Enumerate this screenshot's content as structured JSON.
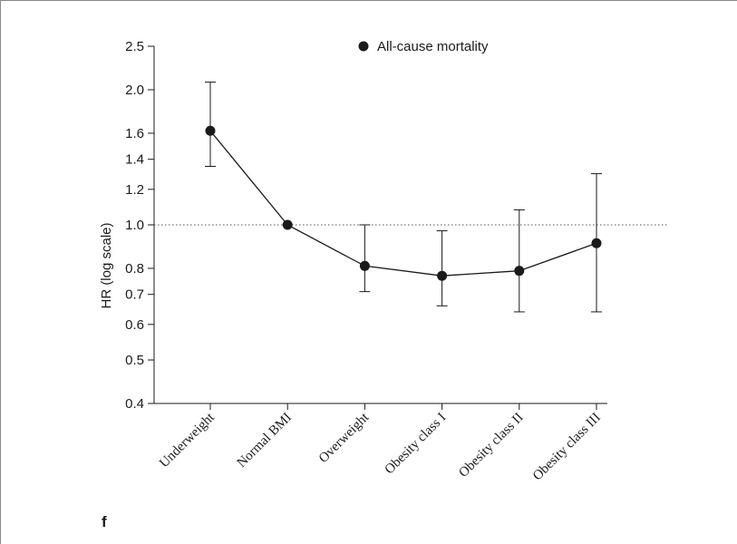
{
  "chart_data": {
    "type": "line",
    "title": "",
    "panel_label": "f",
    "xlabel": "",
    "ylabel": "HR (log scale)",
    "y_scale": "log",
    "ylim": [
      0.4,
      2.5
    ],
    "y_ticks": [
      0.4,
      0.5,
      0.6,
      0.7,
      0.8,
      1.0,
      1.2,
      1.4,
      1.6,
      2.0,
      2.5
    ],
    "y_tick_labels": [
      "0.4",
      "0.5",
      "0.6",
      "0.7",
      "0.8",
      "1.0",
      "1.2",
      "1.4",
      "1.6",
      "2.0",
      "2.5"
    ],
    "reference_line": 1.0,
    "categories": [
      "Underweight",
      "Normal BMI",
      "Overweight",
      "Obesity class I",
      "Obesity class II",
      "Obesity class III"
    ],
    "series": [
      {
        "name": "All-cause mortality",
        "values": [
          1.62,
          1.0,
          0.81,
          0.77,
          0.79,
          0.91
        ],
        "ci_lower": [
          1.35,
          null,
          0.71,
          0.66,
          0.64,
          0.64
        ],
        "ci_upper": [
          2.08,
          null,
          1.0,
          0.97,
          1.08,
          1.3
        ],
        "color": "#1a1a1a"
      }
    ],
    "legend": {
      "position": "top-center"
    },
    "grid": false
  }
}
